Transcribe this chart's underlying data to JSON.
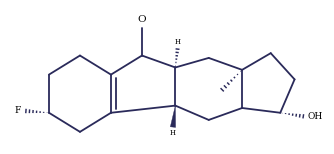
{
  "line_color": "#2a2a5a",
  "line_width": 1.3,
  "background": "#ffffff",
  "figsize": [
    3.34,
    1.54
  ],
  "dpi": 100,
  "F_label": "F",
  "O_label": "O",
  "OH_label": "OH"
}
